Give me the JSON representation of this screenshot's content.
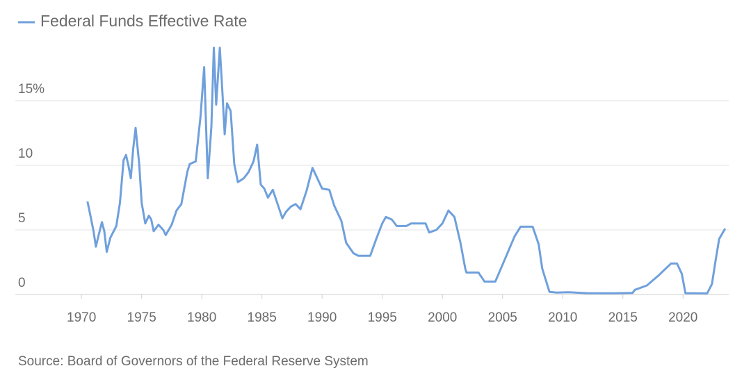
{
  "chart_data": {
    "type": "line",
    "series": [
      {
        "name": "Federal Funds Effective Rate",
        "color": "#6fa0dc",
        "x": [
          1970.5,
          1970.7,
          1971.0,
          1971.2,
          1971.4,
          1971.7,
          1971.9,
          1972.1,
          1972.4,
          1972.9,
          1973.2,
          1973.5,
          1973.7,
          1973.9,
          1974.1,
          1974.3,
          1974.5,
          1974.8,
          1975.0,
          1975.3,
          1975.6,
          1975.8,
          1976.0,
          1976.4,
          1976.8,
          1977.0,
          1977.5,
          1977.9,
          1978.3,
          1978.8,
          1979.0,
          1979.5,
          1979.9,
          1980.2,
          1980.5,
          1980.8,
          1981.0,
          1981.2,
          1981.5,
          1981.7,
          1981.9,
          1982.1,
          1982.4,
          1982.7,
          1983.0,
          1983.5,
          1983.9,
          1984.3,
          1984.6,
          1984.9,
          1985.2,
          1985.5,
          1985.9,
          1986.3,
          1986.7,
          1987.0,
          1987.4,
          1987.8,
          1988.2,
          1988.7,
          1989.2,
          1989.6,
          1990.0,
          1990.6,
          1991.0,
          1991.6,
          1992.0,
          1992.6,
          1993.0,
          1994.0,
          1994.5,
          1995.0,
          1995.3,
          1995.8,
          1996.2,
          1997.0,
          1997.4,
          1998.6,
          1998.9,
          1999.5,
          2000.0,
          2000.5,
          2001.0,
          2001.5,
          2001.9,
          2002.0,
          2003.0,
          2003.5,
          2004.4,
          2005.0,
          2006.0,
          2006.5,
          2007.5,
          2008.0,
          2008.3,
          2008.9,
          2009.5,
          2010.5,
          2012.0,
          2014.0,
          2015.8,
          2016.0,
          2017.0,
          2018.0,
          2019.0,
          2019.5,
          2019.9,
          2020.2,
          2022.0,
          2022.4,
          2022.7,
          2023.0,
          2023.5
        ],
        "values": [
          7.2,
          6.3,
          4.9,
          3.7,
          4.5,
          5.6,
          4.9,
          3.3,
          4.4,
          5.3,
          7.1,
          10.4,
          10.8,
          10.0,
          9.0,
          11.3,
          12.9,
          10.1,
          7.1,
          5.5,
          6.1,
          5.8,
          4.9,
          5.4,
          5.0,
          4.6,
          5.4,
          6.5,
          7.0,
          9.5,
          10.1,
          10.3,
          13.8,
          17.6,
          9.0,
          13.0,
          19.1,
          14.7,
          19.1,
          15.9,
          12.4,
          14.8,
          14.2,
          10.1,
          8.7,
          9.0,
          9.5,
          10.3,
          11.6,
          8.5,
          8.2,
          7.5,
          8.1,
          7.0,
          5.9,
          6.4,
          6.8,
          7.0,
          6.6,
          8.0,
          9.8,
          9.0,
          8.2,
          8.1,
          6.9,
          5.7,
          4.0,
          3.2,
          3.0,
          3.0,
          4.3,
          5.5,
          6.0,
          5.8,
          5.3,
          5.3,
          5.5,
          5.5,
          4.8,
          5.0,
          5.5,
          6.5,
          6.0,
          4.0,
          2.0,
          1.7,
          1.7,
          1.0,
          1.0,
          2.3,
          4.5,
          5.25,
          5.25,
          3.9,
          2.0,
          0.2,
          0.15,
          0.18,
          0.1,
          0.09,
          0.12,
          0.36,
          0.7,
          1.5,
          2.4,
          2.4,
          1.6,
          0.1,
          0.08,
          0.8,
          2.6,
          4.3,
          5.1
        ]
      }
    ],
    "xlim": [
      1964.5,
      2023.8
    ],
    "xticks": [
      1970,
      1975,
      1980,
      1985,
      1990,
      1995,
      2000,
      2005,
      2010,
      2015,
      2020
    ],
    "ylim": [
      0,
      20
    ],
    "yticks": [
      0,
      5,
      10,
      {
        "value": 15,
        "label": "15%"
      }
    ],
    "grid": true,
    "legend": "top-left",
    "source": "Source: Board of Governors of the Federal Reserve System"
  }
}
